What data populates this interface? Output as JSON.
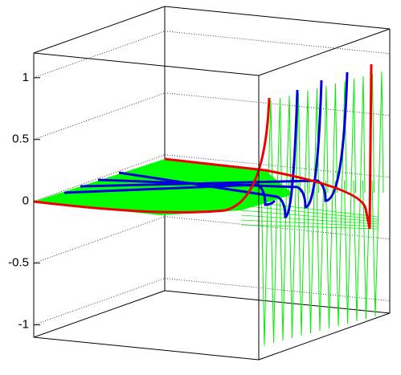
{
  "chart_data": {
    "type": "surface",
    "zlim": [
      -1.1,
      1.2
    ],
    "zticks": [
      1,
      0.5,
      0,
      -0.5,
      -1
    ],
    "grid": true
  }
}
